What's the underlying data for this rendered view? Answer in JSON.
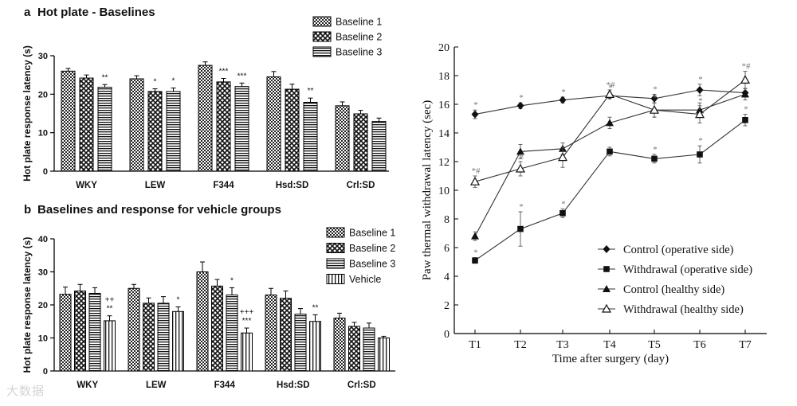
{
  "chart_data": [
    {
      "type": "bar",
      "panel": "a",
      "title": "Hot plate - Baselines",
      "xlabel": "",
      "ylabel": "Hot plate response latency (s)",
      "ylim": [
        0,
        30
      ],
      "yticks": [
        0,
        10,
        20,
        30
      ],
      "grid": false,
      "legend_position": "top-right",
      "categories": [
        "WKY",
        "LEW",
        "F344",
        "Hsd:SD",
        "Crl:SD"
      ],
      "series": [
        {
          "name": "Baseline 1",
          "pattern": "checker",
          "values": [
            26.0,
            24.0,
            27.5,
            24.5,
            17.0
          ],
          "errors": [
            0.7,
            0.8,
            0.9,
            1.4,
            1.0
          ]
        },
        {
          "name": "Baseline 2",
          "pattern": "diamond",
          "values": [
            24.2,
            20.7,
            23.2,
            21.3,
            14.9
          ],
          "errors": [
            0.8,
            0.7,
            0.9,
            1.3,
            0.9
          ]
        },
        {
          "name": "Baseline 3",
          "pattern": "hstripe",
          "values": [
            21.8,
            20.7,
            22.0,
            17.9,
            12.9
          ],
          "errors": [
            0.7,
            0.9,
            0.9,
            1.1,
            0.9
          ]
        }
      ],
      "annotations": [
        {
          "category": "WKY",
          "series": "Baseline 3",
          "lines": [
            "**"
          ]
        },
        {
          "category": "LEW",
          "series": "Baseline 2",
          "lines": [
            "*"
          ]
        },
        {
          "category": "LEW",
          "series": "Baseline 3",
          "lines": [
            "*"
          ]
        },
        {
          "category": "F344",
          "series": "Baseline 2",
          "lines": [
            "***"
          ]
        },
        {
          "category": "F344",
          "series": "Baseline 3",
          "lines": [
            "***"
          ]
        },
        {
          "category": "Hsd:SD",
          "series": "Baseline 3",
          "lines": [
            "**"
          ]
        }
      ]
    },
    {
      "type": "bar",
      "panel": "b",
      "title": "Baselines and response for vehicle groups",
      "xlabel": "",
      "ylabel": "Hot plate response latency (s)",
      "ylim": [
        0,
        40
      ],
      "yticks": [
        0,
        10,
        20,
        30,
        40
      ],
      "grid": false,
      "legend_position": "top-right",
      "categories": [
        "WKY",
        "LEW",
        "F344",
        "Hsd:SD",
        "Crl:SD"
      ],
      "series": [
        {
          "name": "Baseline 1",
          "pattern": "checker",
          "values": [
            23.2,
            25.0,
            30.0,
            23.0,
            16.0
          ],
          "errors": [
            2.2,
            1.2,
            3.0,
            2.0,
            1.5
          ]
        },
        {
          "name": "Baseline 2",
          "pattern": "diamond",
          "values": [
            24.2,
            20.5,
            25.7,
            22.0,
            13.5
          ],
          "errors": [
            2.0,
            1.6,
            2.0,
            2.2,
            1.2
          ]
        },
        {
          "name": "Baseline 3",
          "pattern": "hstripe",
          "values": [
            23.5,
            20.5,
            23.0,
            17.2,
            13.0
          ],
          "errors": [
            1.7,
            2.0,
            2.2,
            1.7,
            1.5
          ]
        },
        {
          "name": "Vehicle",
          "pattern": "vstripe",
          "values": [
            15.2,
            18.0,
            11.5,
            15.0,
            10.0
          ],
          "errors": [
            1.5,
            1.4,
            1.5,
            2.0,
            0.5
          ]
        }
      ],
      "annotations": [
        {
          "category": "WKY",
          "series": "Vehicle",
          "lines": [
            "++",
            "**"
          ]
        },
        {
          "category": "LEW",
          "series": "Vehicle",
          "lines": [
            "*"
          ]
        },
        {
          "category": "F344",
          "series": "Baseline 3",
          "lines": [
            "*"
          ]
        },
        {
          "category": "F344",
          "series": "Vehicle",
          "lines": [
            "+++",
            "***"
          ]
        },
        {
          "category": "Hsd:SD",
          "series": "Vehicle",
          "lines": [
            "**"
          ]
        }
      ]
    },
    {
      "type": "line",
      "xlabel": "Time after surgery (day)",
      "ylabel": "Paw thermal withdrawal latency (sec)",
      "x": [
        "T1",
        "T2",
        "T3",
        "T4",
        "T5",
        "T6",
        "T7"
      ],
      "ylim": [
        0,
        20
      ],
      "yticks": [
        0,
        2,
        4,
        6,
        8,
        10,
        12,
        14,
        16,
        18,
        20
      ],
      "grid": false,
      "legend_position": "bottom-right",
      "series": [
        {
          "name": "Control (operative side)",
          "marker": "diamond",
          "values": [
            15.3,
            15.9,
            16.3,
            16.6,
            16.4,
            17.0,
            16.8
          ],
          "errors": [
            0.3,
            0.2,
            0.2,
            0.2,
            0.3,
            0.4,
            0.3
          ],
          "labels": [
            "*",
            "*",
            "*",
            "*",
            "*",
            "*",
            ""
          ]
        },
        {
          "name": "Withdrawal (operative side)",
          "marker": "square",
          "values": [
            5.1,
            7.3,
            8.4,
            12.7,
            12.2,
            12.5,
            14.9
          ],
          "errors": [
            0.2,
            1.2,
            0.3,
            0.3,
            0.3,
            0.6,
            0.4
          ],
          "labels": [
            "*",
            "*",
            "*",
            "",
            "*",
            "*",
            "*"
          ]
        },
        {
          "name": "Control (healthy side)",
          "marker": "triangle",
          "values": [
            6.8,
            12.7,
            12.9,
            14.7,
            15.6,
            15.6,
            16.7
          ],
          "errors": [
            0.3,
            0.5,
            0.4,
            0.4,
            0.5,
            0.5,
            0.4
          ],
          "labels": [
            "",
            "",
            "",
            "",
            "",
            "",
            ""
          ]
        },
        {
          "name": "Withdrawal (healthy side)",
          "marker": "open-triangle",
          "values": [
            10.6,
            11.5,
            12.3,
            16.7,
            15.6,
            15.3,
            17.7
          ],
          "errors": [
            0.4,
            0.5,
            0.7,
            0.3,
            0.5,
            0.6,
            0.6
          ],
          "labels": [
            "*#",
            "#",
            "",
            "*#",
            "*",
            "*",
            "*#"
          ]
        }
      ]
    }
  ],
  "panel_a": {
    "letter": "a",
    "title": "Hot plate - Baselines"
  },
  "panel_b": {
    "letter": "b",
    "title": "Baselines and response for vehicle groups"
  },
  "watermark": "大数据"
}
